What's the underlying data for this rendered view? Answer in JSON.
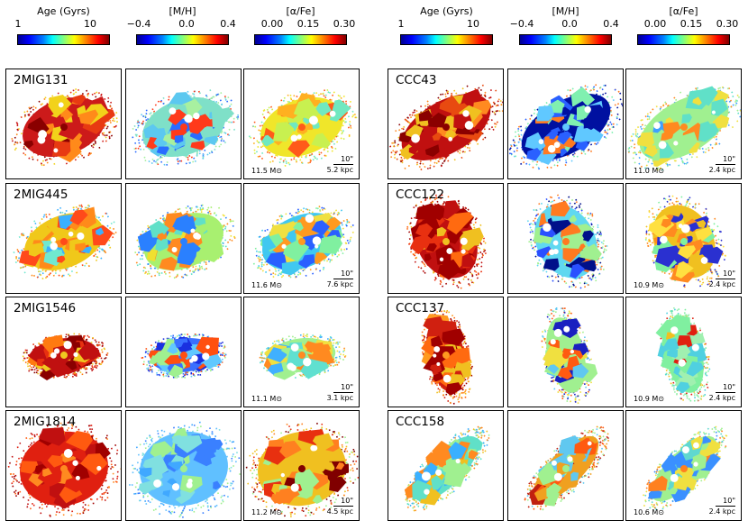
{
  "colorbars": {
    "age_left": {
      "title": "Age (Gyrs)",
      "ticks": [
        "1",
        "10"
      ]
    },
    "mh_left": {
      "title": "[M/H]",
      "ticks": [
        "−0.4",
        "0.0",
        "0.4"
      ]
    },
    "afe_left": {
      "title": "[α/Fe]",
      "ticks": [
        "0.00",
        "0.15",
        "0.30"
      ]
    },
    "age_right": {
      "title": "Age (Gyrs)",
      "ticks": [
        "1",
        "10"
      ]
    },
    "mh_right": {
      "title": "[M/H]",
      "ticks": [
        "−0.4",
        "0.0",
        "0.4"
      ]
    },
    "afe_right": {
      "title": "[α/Fe]",
      "ticks": [
        "0.00",
        "0.15",
        "0.30"
      ]
    }
  },
  "galaxies": [
    {
      "name": "2MIG131",
      "mass": "11.5 M⊙",
      "arcsec": "10\"",
      "kpc": "5.2 kpc"
    },
    {
      "name": "2MIG445",
      "mass": "11.6 M⊙",
      "arcsec": "10\"",
      "kpc": "7.6 kpc"
    },
    {
      "name": "2MIG1546",
      "mass": "11.1 M⊙",
      "arcsec": "10\"",
      "kpc": "3.1 kpc"
    },
    {
      "name": "2MIG1814",
      "mass": "11.2 M⊙",
      "arcsec": "10\"",
      "kpc": "4.5 kpc"
    },
    {
      "name": "CCC43",
      "mass": "11.0 M⊙",
      "arcsec": "10\"",
      "kpc": "2.4 kpc"
    },
    {
      "name": "CCC122",
      "mass": "10.9 M⊙",
      "arcsec": "10\"",
      "kpc": "2.4 kpc"
    },
    {
      "name": "CCC137",
      "mass": "10.9 M⊙",
      "arcsec": "10\"",
      "kpc": "2.4 kpc"
    },
    {
      "name": "CCC158",
      "mass": "10.6 M⊙",
      "arcsec": "10\"",
      "kpc": "2.4 kpc"
    }
  ],
  "map_colors": {
    "2MIG131": {
      "age": [
        "#cc1a1a",
        "#e83a12",
        "#ff8a1a",
        "#f2d21a",
        "#8a0000"
      ],
      "mh": [
        "#7fe0c8",
        "#5cc8f0",
        "#a8f0a0",
        "#2a6cff",
        "#ff3a1a"
      ],
      "afe": [
        "#f0e62a",
        "#c8f050",
        "#ffb020",
        "#70e8c0",
        "#ff5a1a"
      ]
    },
    "2MIG445": {
      "age": [
        "#f0c81a",
        "#ff8a1a",
        "#70e8d0",
        "#3ab0ff",
        "#ff4a1a"
      ],
      "mh": [
        "#a8f070",
        "#f0e030",
        "#60e0c8",
        "#ff8a20",
        "#2a80ff"
      ],
      "afe": [
        "#40c8f0",
        "#80f0a0",
        "#2a60ff",
        "#f0e040",
        "#ff9a20"
      ]
    },
    "2MIG1546": {
      "age": [
        "#c01010",
        "#e83010",
        "#8a0000",
        "#ff7a10",
        "#f0c820"
      ],
      "mh": [
        "#3a70ff",
        "#1a30e0",
        "#60c8ff",
        "#a0f090",
        "#ff5010"
      ],
      "afe": [
        "#a0f090",
        "#60e0d0",
        "#f0e040",
        "#40b0ff",
        "#ff8a20"
      ]
    },
    "2MIG1814": {
      "age": [
        "#e02010",
        "#c01010",
        "#ff5a10",
        "#a00000",
        "#ff8a20"
      ],
      "mh": [
        "#60c0ff",
        "#40a8ff",
        "#80e0e0",
        "#3a80ff",
        "#a0f090"
      ],
      "afe": [
        "#f0c020",
        "#ff8020",
        "#e83010",
        "#a0f090",
        "#800000"
      ]
    },
    "CCC43": {
      "age": [
        "#c01010",
        "#e84a10",
        "#f0c020",
        "#ff8a20",
        "#8a0000"
      ],
      "mh": [
        "#0010a0",
        "#2a60ff",
        "#80f0b0",
        "#ff7a20",
        "#60c8ff"
      ],
      "afe": [
        "#a0f090",
        "#60e0c8",
        "#f0e040",
        "#40a0ff",
        "#ff8a20"
      ]
    },
    "CCC122": {
      "age": [
        "#c01010",
        "#e83010",
        "#a00000",
        "#ff6a10",
        "#f0c020"
      ],
      "mh": [
        "#60d8f0",
        "#2a50ff",
        "#a0f090",
        "#00108a",
        "#ff7a20"
      ],
      "afe": [
        "#f0c020",
        "#ffe040",
        "#ff8a20",
        "#2a30d0",
        "#80f0a0"
      ]
    },
    "CCC137": {
      "age": [
        "#d02010",
        "#ff6a10",
        "#a00000",
        "#f0c020",
        "#ff9a20"
      ],
      "mh": [
        "#a0f090",
        "#60c8f0",
        "#1a20c0",
        "#f0e040",
        "#ff5a10"
      ],
      "afe": [
        "#80f0a0",
        "#f0c020",
        "#50d0e0",
        "#e02010",
        "#a0f0b0"
      ]
    },
    "CCC158": {
      "age": [
        "#60e0c8",
        "#f0c020",
        "#3ab0ff",
        "#ff8a20",
        "#a0f090"
      ],
      "mh": [
        "#f0a020",
        "#ff5a10",
        "#c02010",
        "#60c8f0",
        "#a0f090"
      ],
      "afe": [
        "#a0f090",
        "#60d8d0",
        "#f0e040",
        "#3a90ff",
        "#ff8020"
      ]
    }
  }
}
